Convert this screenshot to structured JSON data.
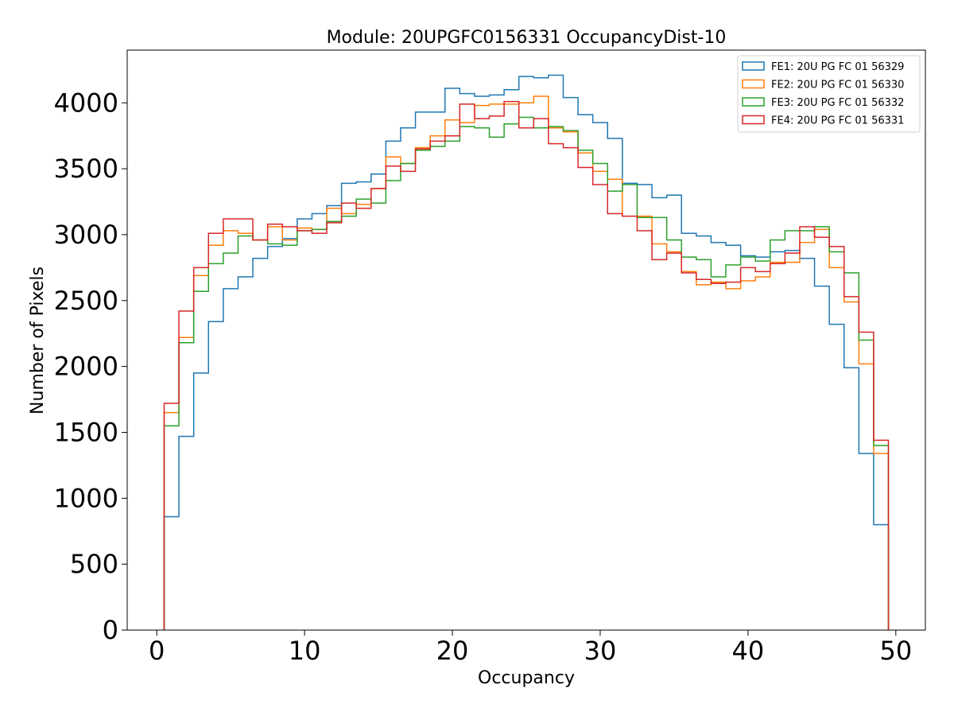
{
  "chart_data": {
    "type": "line",
    "title": "Module: 20UPGFC0156331 OccupancyDist-10",
    "xlabel": "Occupancy",
    "ylabel": "Number of Pixels",
    "xlim": [
      -2,
      52
    ],
    "ylim": [
      0,
      4400
    ],
    "xticks": [
      0,
      10,
      20,
      30,
      40,
      50
    ],
    "yticks": [
      0,
      500,
      1000,
      1500,
      2000,
      2500,
      3000,
      3500,
      4000
    ],
    "grid": false,
    "legend_position": "top-right",
    "bin_edges": [
      0.5,
      49.5
    ],
    "series": [
      {
        "name": "FE1: 20U PG FC 01 56329",
        "color": "#1f77b4",
        "values": [
          860,
          1470,
          1950,
          2340,
          2590,
          2680,
          2820,
          2910,
          2970,
          3120,
          3160,
          3220,
          3390,
          3400,
          3460,
          3710,
          3810,
          3930,
          3930,
          4110,
          4070,
          4050,
          4060,
          4100,
          4200,
          4190,
          4210,
          4040,
          3910,
          3850,
          3730,
          3390,
          3380,
          3280,
          3300,
          3010,
          2990,
          2940,
          2920,
          2840,
          2830,
          2870,
          2880,
          2820,
          2610,
          2320,
          1990,
          1340,
          800
        ]
      },
      {
        "name": "FE2: 20U PG FC 01 56330",
        "color": "#ff7f0e",
        "values": [
          1650,
          2220,
          2690,
          2920,
          3030,
          3010,
          2960,
          3060,
          2960,
          3050,
          3040,
          3200,
          3160,
          3230,
          3350,
          3590,
          3540,
          3660,
          3750,
          3870,
          3850,
          3980,
          3990,
          3990,
          4000,
          4050,
          3810,
          3780,
          3620,
          3480,
          3420,
          3140,
          3140,
          2930,
          2870,
          2720,
          2620,
          2640,
          2590,
          2650,
          2680,
          2790,
          2790,
          2940,
          3040,
          2750,
          2490,
          2020,
          1340
        ]
      },
      {
        "name": "FE3: 20U PG FC 01 56332",
        "color": "#2ca02c",
        "values": [
          1550,
          2180,
          2570,
          2780,
          2860,
          2990,
          2960,
          2930,
          2920,
          3030,
          3040,
          3100,
          3140,
          3270,
          3240,
          3410,
          3540,
          3640,
          3670,
          3710,
          3820,
          3810,
          3740,
          3840,
          3890,
          3810,
          3820,
          3790,
          3640,
          3540,
          3330,
          3380,
          3130,
          3130,
          2960,
          2830,
          2810,
          2680,
          2770,
          2830,
          2800,
          2960,
          3030,
          3030,
          3060,
          2870,
          2710,
          2200,
          1400
        ]
      },
      {
        "name": "FE4: 20U PG FC 01 56331",
        "color": "#d62728",
        "values": [
          1720,
          2420,
          2750,
          3010,
          3120,
          3120,
          2960,
          3080,
          3060,
          3030,
          3010,
          3090,
          3240,
          3200,
          3350,
          3520,
          3480,
          3650,
          3710,
          3750,
          3990,
          3880,
          3900,
          4010,
          3810,
          3880,
          3690,
          3660,
          3510,
          3380,
          3160,
          3140,
          3030,
          2810,
          2860,
          2710,
          2660,
          2630,
          2640,
          2750,
          2720,
          2780,
          2860,
          3060,
          2980,
          2910,
          2530,
          2260,
          1440
        ]
      }
    ]
  }
}
